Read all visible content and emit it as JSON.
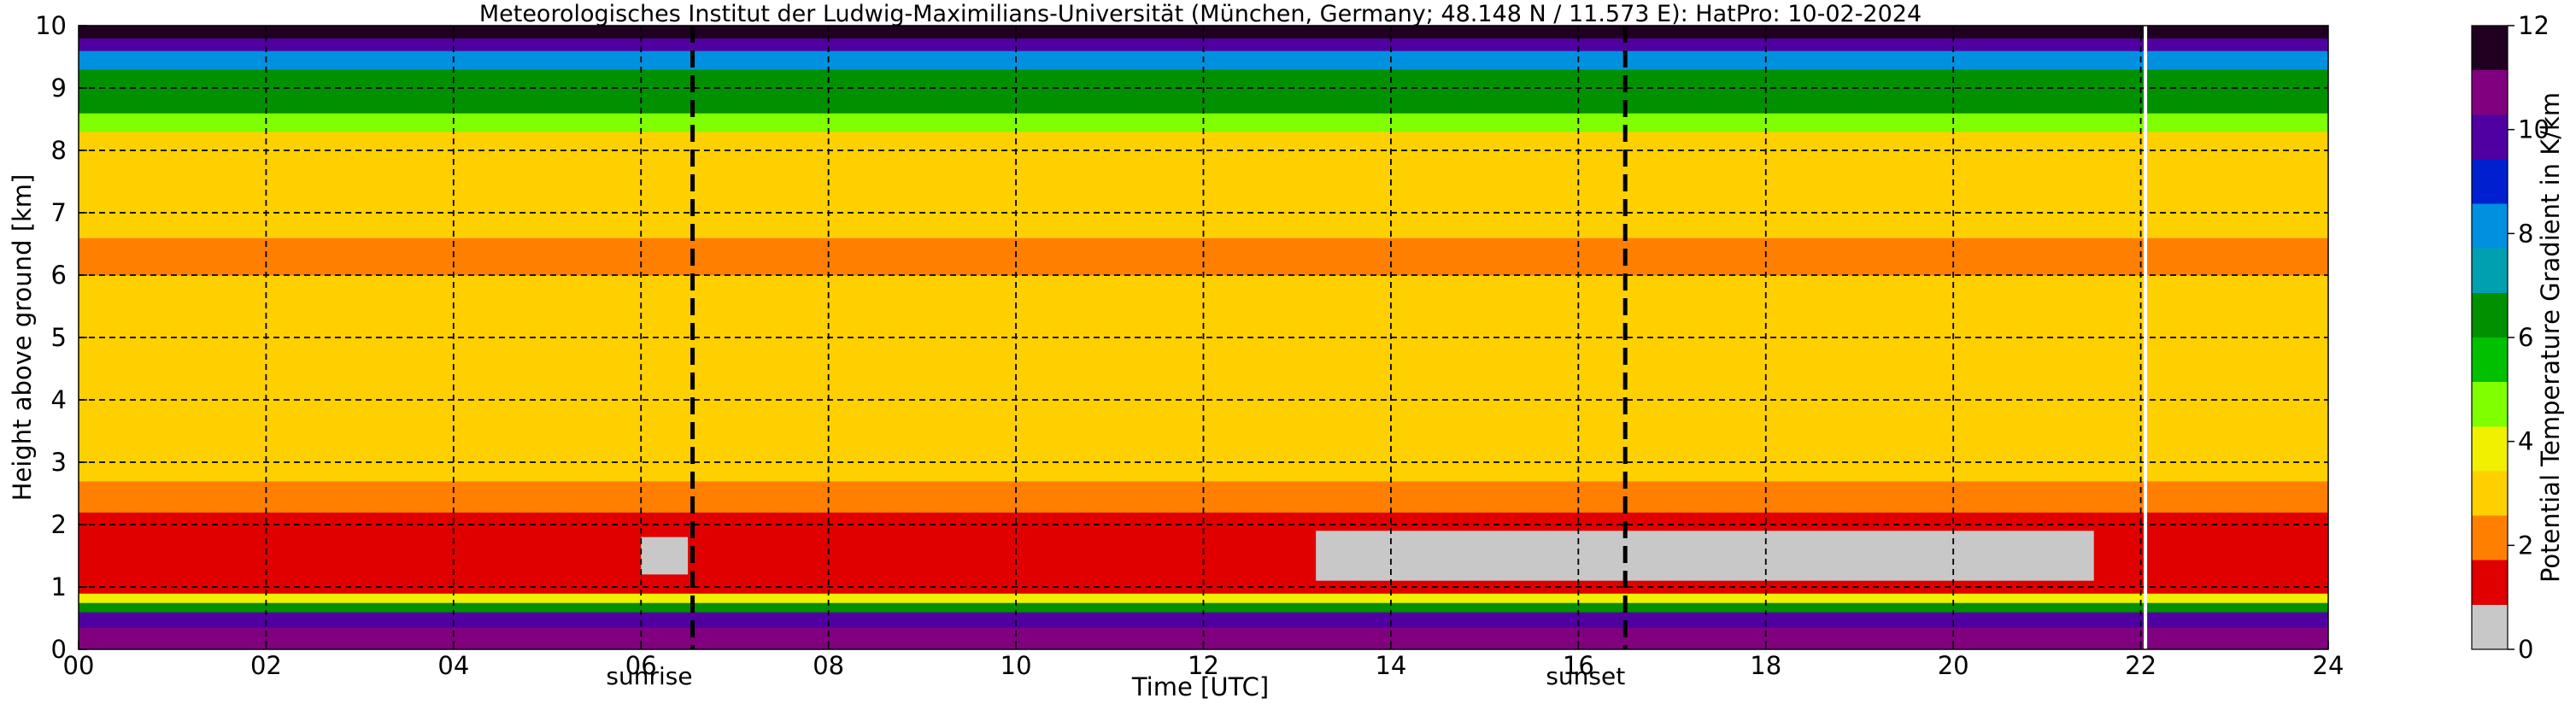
{
  "chart_data": {
    "type": "heatmap",
    "title": "Meteorologisches Institut der Ludwig-Maximilians-Universität (München, Germany; 48.148 N / 11.573 E):    HatPro: 10-02-2024",
    "xlabel": "Time [UTC]",
    "ylabel": "Height above ground [km]",
    "xlim": [
      0,
      24
    ],
    "ylim": [
      0,
      10
    ],
    "x_ticks": [
      "00",
      "02",
      "04",
      "06",
      "08",
      "10",
      "12",
      "14",
      "16",
      "18",
      "20",
      "22",
      "24"
    ],
    "y_ticks": [
      "0",
      "1",
      "2",
      "3",
      "4",
      "5",
      "6",
      "7",
      "8",
      "9",
      "10"
    ],
    "grid": true,
    "colorbar": {
      "label": "Potential Temperature Gradient in K/km",
      "range": [
        0,
        12
      ],
      "ticks": [
        "0",
        "2",
        "4",
        "6",
        "8",
        "10",
        "12"
      ],
      "colormap": [
        "#c8c8c8",
        "#e00000",
        "#ff8000",
        "#ffd000",
        "#f0f000",
        "#80ff00",
        "#00c000",
        "#009000",
        "#00a0b0",
        "#0090e0",
        "#0020d0",
        "#5000a0",
        "#800080",
        "#200020"
      ]
    },
    "events": [
      {
        "label": "sunrise",
        "time": 6.55
      },
      {
        "label": "sunset",
        "time": 16.5
      }
    ],
    "end_of_data_marker": 22.05,
    "layers": [
      {
        "base": 0.0,
        "top": 0.35,
        "value": 11.0
      },
      {
        "base": 0.35,
        "top": 0.6,
        "value": 9.8
      },
      {
        "base": 0.6,
        "top": 0.75,
        "value": 6.0
      },
      {
        "base": 0.75,
        "top": 0.9,
        "value": 4.0
      },
      {
        "base": 0.9,
        "top": 2.2,
        "value": 1.2
      },
      {
        "base": 2.2,
        "top": 2.7,
        "value": 2.0
      },
      {
        "base": 2.7,
        "top": 3.5,
        "value": 3.4
      },
      {
        "base": 3.5,
        "top": 6.0,
        "value": 2.6
      },
      {
        "base": 6.0,
        "top": 6.6,
        "value": 2.1
      },
      {
        "base": 6.6,
        "top": 7.8,
        "value": 2.6
      },
      {
        "base": 7.8,
        "top": 8.3,
        "value": 3.2
      },
      {
        "base": 8.3,
        "top": 8.6,
        "value": 5.0
      },
      {
        "base": 8.6,
        "top": 9.3,
        "value": 6.2
      },
      {
        "base": 9.3,
        "top": 9.6,
        "value": 8.3
      },
      {
        "base": 9.6,
        "top": 9.8,
        "value": 10.2
      },
      {
        "base": 9.8,
        "top": 10.0,
        "value": 11.5
      }
    ],
    "gray_regions": [
      {
        "t0": 6.0,
        "t1": 6.5,
        "base": 1.2,
        "top": 1.8,
        "value": 0.4
      },
      {
        "t0": 13.2,
        "t1": 21.5,
        "base": 1.1,
        "top": 1.9,
        "value": 0.3
      }
    ]
  }
}
